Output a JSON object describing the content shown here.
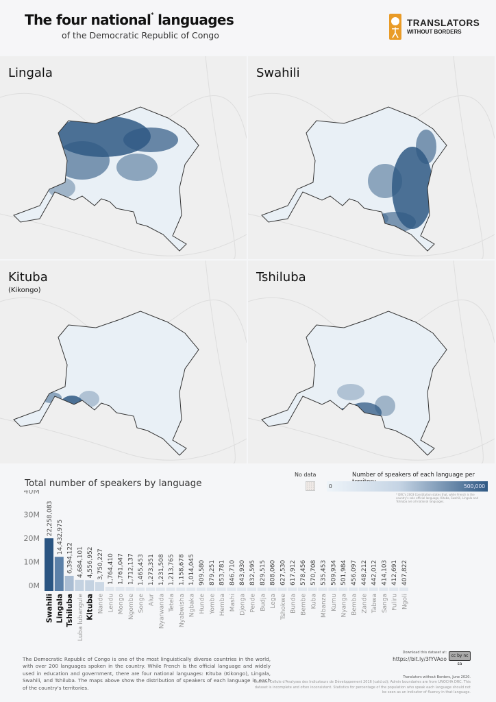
{
  "header": {
    "title": "The four national",
    "title_mark": "*",
    "title_end": "languages",
    "subtitle": "of the Democratic Republic of Congo",
    "logo_line1": "TRANSLATORS",
    "logo_line2": "WITHOUT BORDERS",
    "logo_color": "#e99b27"
  },
  "maps": [
    {
      "label": "Lingala",
      "sub": ""
    },
    {
      "label": "Swahili",
      "sub": ""
    },
    {
      "label": "Kituba",
      "sub": "(Kikongo)"
    },
    {
      "label": "Tshiluba",
      "sub": ""
    }
  ],
  "legend": {
    "no_data": "No data",
    "title": "Number of speakers of each language per territory",
    "min": "0",
    "max": "500,000",
    "color_low": "#eef4f9",
    "color_high": "#2f5984",
    "footnote": "* DRC's 2003 Constitution states that, while French is the country's sole official language, Kituba, Swahili, Lingala and Tshiluba are all national languages."
  },
  "chart_data": {
    "type": "bar",
    "title": "Total number of speakers by language",
    "ylim": [
      0,
      40000000
    ],
    "yticks": [
      "0M",
      "10M",
      "20M",
      "30M",
      "40M"
    ],
    "grid": false,
    "highlighted": [
      "Swahili",
      "Lingala",
      "Tshiluba",
      "Kituba"
    ],
    "colors": {
      "Swahili": "#2a5582",
      "Lingala": "#5b80a8",
      "Tshiluba": "#aabdd3",
      "Luba lubangule": "#c4d2e1",
      "Kituba": "#c4d2e1",
      "Nande": "#ccd8e5",
      "other": "#e1e7ee"
    },
    "categories": [
      "Swahili",
      "Lingala",
      "Tshiluba",
      "Luba lubangule",
      "Kituba",
      "Nande",
      "Lendu",
      "Mongo",
      "Ngombe",
      "Songe",
      "Alur",
      "Nyarwanda",
      "Tetela",
      "Nyabwisha",
      "Ngbaka",
      "Hunde",
      "Yombe",
      "Hemba",
      "Mashi",
      "Djonga",
      "Pende",
      "Budja",
      "Lega",
      "Tshokwe",
      "Bunda",
      "Bembe",
      "Kuba",
      "Mbanza",
      "Kumu",
      "Nyanga",
      "Bemba",
      "Zande",
      "Tabwa",
      "Sanga",
      "Fuliru",
      "Ngoli"
    ],
    "values": [
      22258083,
      14432975,
      6394122,
      4684101,
      4556952,
      3750227,
      1764410,
      1761047,
      1712137,
      1465453,
      1273351,
      1231508,
      1213765,
      1158678,
      1014045,
      909580,
      879251,
      853781,
      846710,
      843930,
      832595,
      829515,
      808060,
      627530,
      617912,
      578456,
      570708,
      535453,
      509934,
      501984,
      456097,
      448212,
      442012,
      414103,
      412691,
      407822
    ]
  },
  "footer": {
    "about": "The Democratic Republic of Congo is one of the most linguistically diverse countries in the world, with over 200 languages spoken in the country. While French is the official language and widely used in education and government, there are four national languages: Kituba (Kikongo), Lingala, Swahili, and Tshiluba. The maps above show the distribution of speakers of each language in each of the country's territories.",
    "download": "Download this dataset at:",
    "url": "https://bit.ly/3fYVAoo",
    "license": "cc by nc sa",
    "credit": "Translators without Borders, June 2020.",
    "sources": "Sources: Cellule d'Analyses des Indicateurs de Développement 2016 (caid.cd); Admin boundaries are from UNOCHA DRC. This dataset is incomplete and often inconsistent. Statistics for percentage of the population who speak each language should not be seen as an indicator of fluency in that language."
  }
}
